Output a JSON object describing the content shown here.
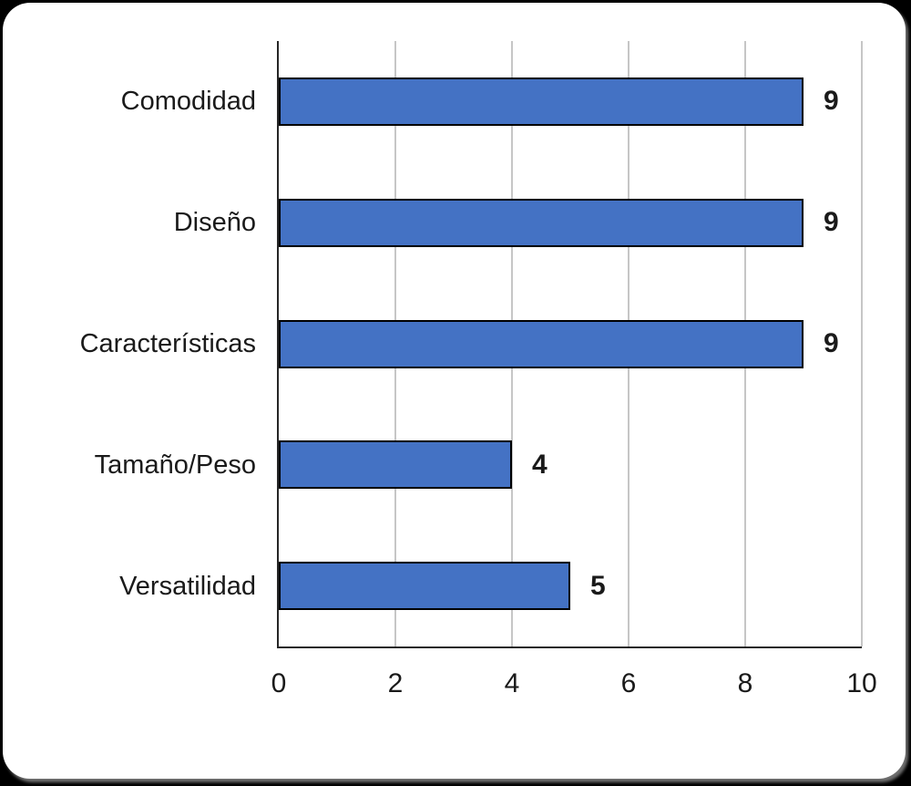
{
  "chart_data": {
    "type": "bar",
    "orientation": "horizontal",
    "title": "",
    "xlabel": "",
    "ylabel": "",
    "categories": [
      "Comodidad",
      "Diseño",
      "Características",
      "Tamaño/Peso",
      "Versatilidad"
    ],
    "values": [
      9,
      9,
      9,
      4,
      5
    ],
    "data_labels": [
      "9",
      "9",
      "9",
      "4",
      "5"
    ],
    "xlim": [
      0,
      10
    ],
    "xticks": [
      0,
      2,
      4,
      6,
      8,
      10
    ],
    "grid": "vertical major gridlines every 2 units",
    "legend": "none",
    "bar_color": "#4472C4",
    "bar_border_color": "#000000",
    "gridline_color": "#C6C6C6",
    "axis_line_color": "#262626",
    "label_color": "#1A1A1A",
    "panel_background": "#FFFFFF",
    "page_background": "#000000"
  }
}
